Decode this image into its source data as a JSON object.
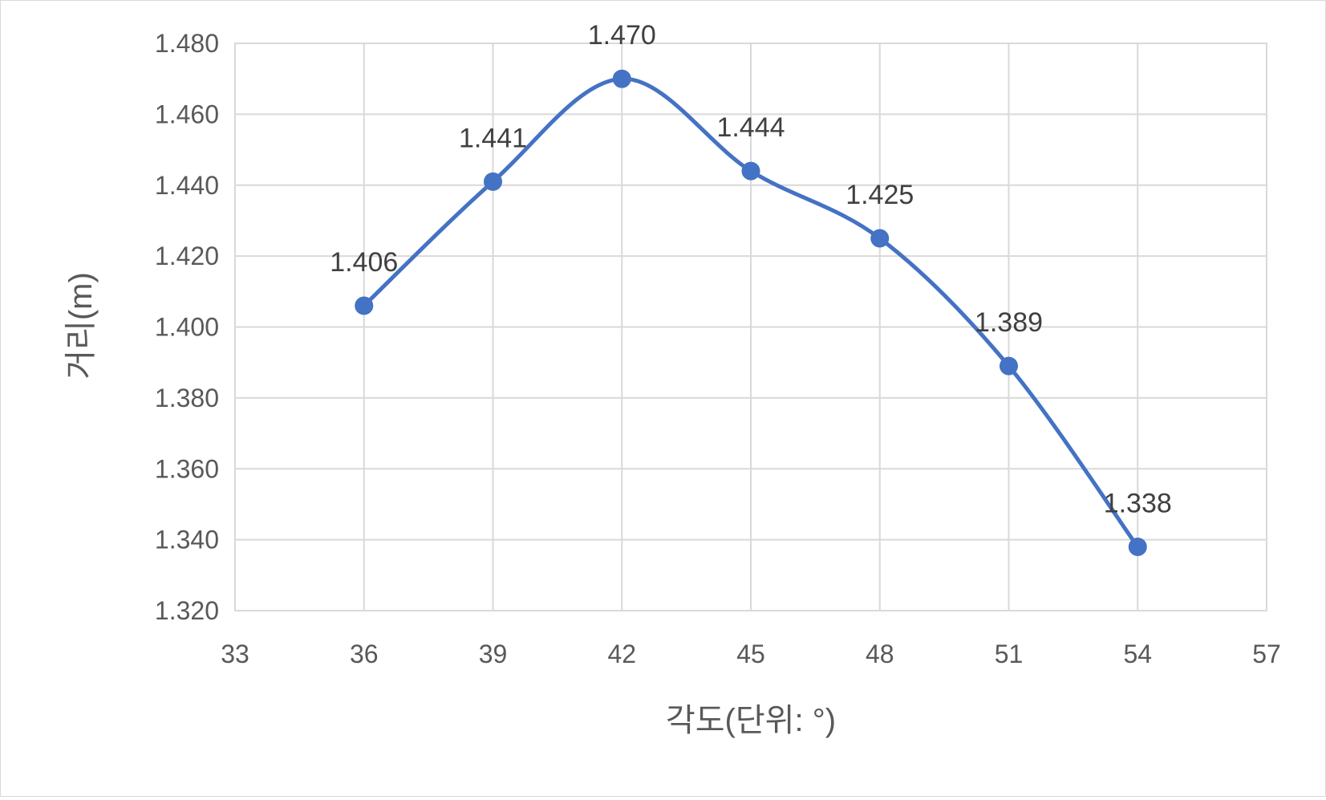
{
  "chart_data": {
    "type": "scatter",
    "title": "",
    "xlabel": "각도(단위: °)",
    "ylabel": "거리(m)",
    "xlim": [
      33,
      57
    ],
    "ylim": [
      1.32,
      1.48
    ],
    "x_ticks": [
      "33",
      "36",
      "39",
      "42",
      "45",
      "48",
      "51",
      "54",
      "57"
    ],
    "y_ticks": [
      "1.480",
      "1.460",
      "1.440",
      "1.420",
      "1.400",
      "1.380",
      "1.360",
      "1.340",
      "1.320"
    ],
    "grid": true,
    "smooth_line": true,
    "series": [
      {
        "x": [
          36,
          39,
          42,
          45,
          48,
          51,
          54
        ],
        "y": [
          1.406,
          1.441,
          1.47,
          1.444,
          1.425,
          1.389,
          1.338
        ],
        "labels": [
          "1.406",
          "1.441",
          "1.470",
          "1.444",
          "1.425",
          "1.389",
          "1.338"
        ],
        "color": "#4472c4"
      }
    ]
  }
}
